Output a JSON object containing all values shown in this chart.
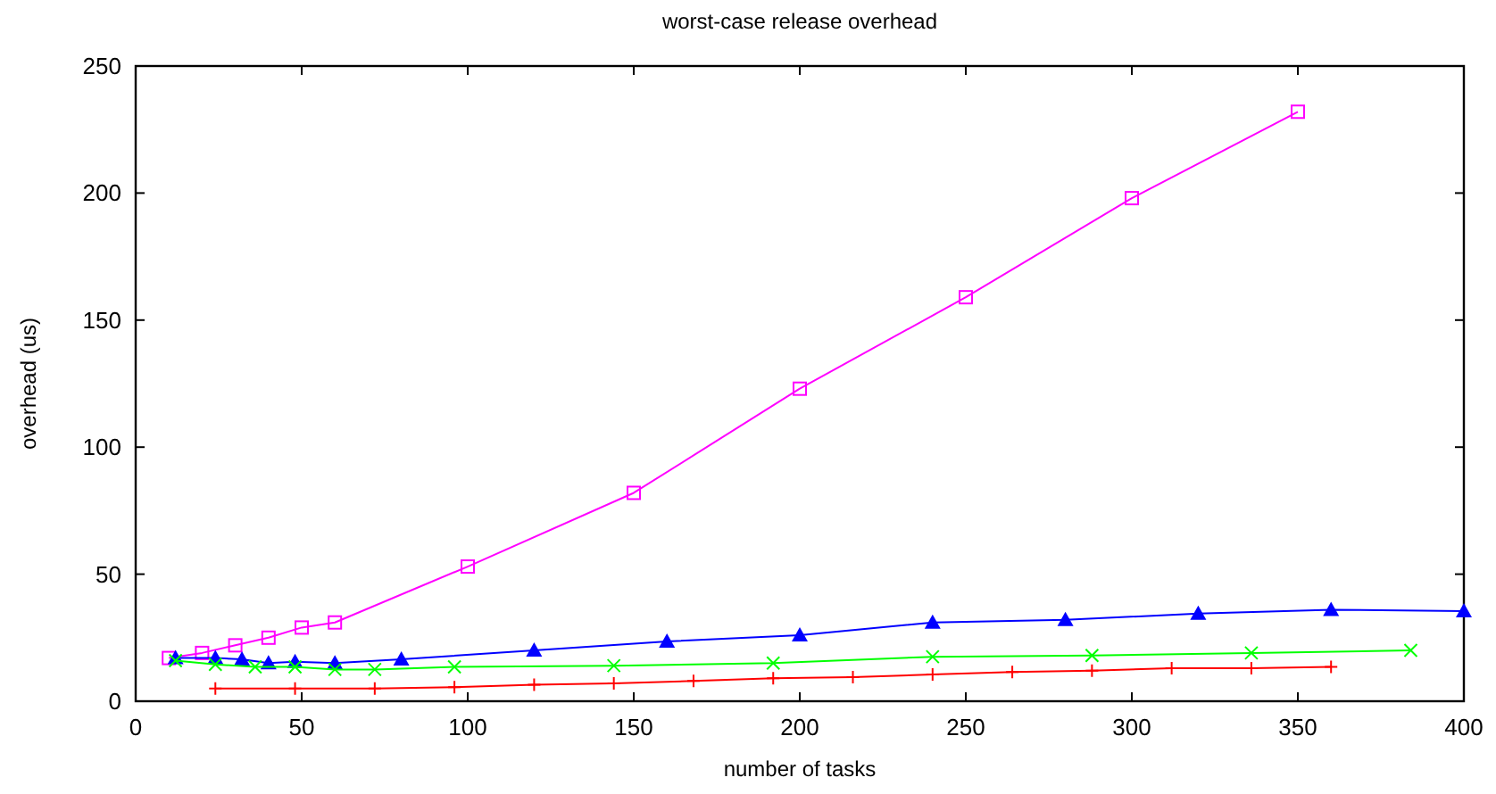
{
  "chart_data": {
    "type": "line",
    "title": "worst-case release overhead",
    "xlabel": "number of tasks",
    "ylabel": "overhead (us)",
    "xlim": [
      0,
      400
    ],
    "xticks": [
      0,
      50,
      100,
      150,
      200,
      250,
      300,
      350,
      400
    ],
    "ylim": [
      0,
      250
    ],
    "yticks": [
      0,
      50,
      100,
      150,
      200,
      250
    ],
    "grid": false,
    "series": [
      {
        "color": "#ff00ff",
        "marker": "square",
        "x": [
          10,
          20,
          30,
          40,
          50,
          60,
          100,
          150,
          200,
          250,
          300,
          350
        ],
        "values": [
          17,
          19,
          22,
          25,
          29,
          31,
          53,
          82,
          123,
          159,
          198,
          232
        ]
      },
      {
        "color": "#0000ff",
        "marker": "triangle",
        "x": [
          12,
          24,
          32,
          40,
          48,
          60,
          80,
          120,
          160,
          200,
          240,
          280,
          320,
          360,
          400
        ],
        "values": [
          17,
          17,
          16.5,
          15,
          15.5,
          15,
          16.5,
          20,
          23.5,
          26,
          31,
          32,
          34.5,
          36,
          35.5
        ]
      },
      {
        "color": "#00ff00",
        "marker": "cross",
        "x": [
          12,
          24,
          36,
          48,
          60,
          72,
          96,
          144,
          192,
          240,
          288,
          336,
          384
        ],
        "values": [
          16,
          14.5,
          13.5,
          13.5,
          12.5,
          12.5,
          13.5,
          14,
          15,
          17.5,
          18,
          19,
          20
        ]
      },
      {
        "color": "#ff0000",
        "marker": "plus",
        "x": [
          24,
          48,
          72,
          96,
          120,
          144,
          168,
          192,
          216,
          240,
          264,
          288,
          312,
          336,
          360
        ],
        "values": [
          5,
          5,
          5,
          5.5,
          6.5,
          7,
          8,
          9,
          9.5,
          10.5,
          11.5,
          12,
          13,
          13,
          13.5
        ]
      }
    ]
  }
}
